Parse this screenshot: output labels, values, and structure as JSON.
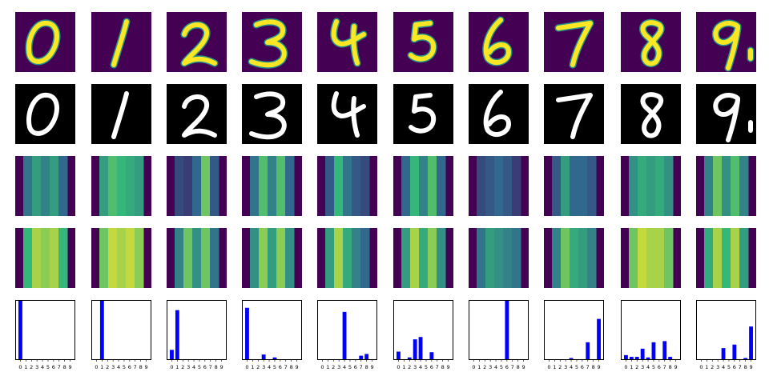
{
  "colors": {
    "viridis_dark": "#440154",
    "viridis_mid": "#21918c",
    "viridis_green": "#5ec962",
    "viridis_yellow": "#fde725",
    "digit_white": "#ffffff",
    "digit_black": "#000000",
    "bar_blue": "#0000ff"
  },
  "digits": [
    "0",
    "1",
    "2",
    "3",
    "4",
    "5",
    "6",
    "7",
    "8",
    "9"
  ],
  "rows": [
    {
      "name": "digit-viridis",
      "style": "viridis"
    },
    {
      "name": "digit-grayscale",
      "style": "grayscale"
    },
    {
      "name": "reconstruction-a",
      "style": "band"
    },
    {
      "name": "reconstruction-b",
      "style": "band"
    },
    {
      "name": "class-probability",
      "style": "bar"
    }
  ],
  "chart_data": [
    {
      "type": "bar",
      "panel": 1,
      "categories": [
        "0",
        "1",
        "2",
        "3",
        "4",
        "5",
        "6",
        "7",
        "8",
        "9"
      ],
      "values": [
        1.0,
        0,
        0,
        0,
        0,
        0,
        0,
        0,
        0,
        0
      ],
      "ylim": [
        0,
        1
      ],
      "grid": false
    },
    {
      "type": "bar",
      "panel": 2,
      "categories": [
        "0",
        "1",
        "2",
        "3",
        "4",
        "5",
        "6",
        "7",
        "8",
        "9"
      ],
      "values": [
        0,
        1.0,
        0,
        0,
        0,
        0,
        0,
        0,
        0,
        0
      ],
      "ylim": [
        0,
        1
      ],
      "grid": false
    },
    {
      "type": "bar",
      "panel": 3,
      "categories": [
        "0",
        "1",
        "2",
        "3",
        "4",
        "5",
        "6",
        "7",
        "8",
        "9"
      ],
      "values": [
        0.16,
        0.84,
        0,
        0,
        0,
        0,
        0,
        0,
        0,
        0
      ],
      "ylim": [
        0,
        1
      ],
      "grid": false
    },
    {
      "type": "bar",
      "panel": 4,
      "categories": [
        "0",
        "1",
        "2",
        "3",
        "4",
        "5",
        "6",
        "7",
        "8",
        "9"
      ],
      "values": [
        0.88,
        0,
        0,
        0.08,
        0,
        0.03,
        0,
        0,
        0,
        0
      ],
      "ylim": [
        0,
        1
      ],
      "grid": false
    },
    {
      "type": "bar",
      "panel": 5,
      "categories": [
        "0",
        "1",
        "2",
        "3",
        "4",
        "5",
        "6",
        "7",
        "8",
        "9"
      ],
      "values": [
        0,
        0,
        0,
        0,
        0.81,
        0,
        0,
        0.06,
        0.09,
        0
      ],
      "ylim": [
        0,
        1
      ],
      "grid": false
    },
    {
      "type": "bar",
      "panel": 6,
      "categories": [
        "0",
        "1",
        "2",
        "3",
        "4",
        "5",
        "6",
        "7",
        "8",
        "9"
      ],
      "values": [
        0.13,
        0,
        0.03,
        0.34,
        0.38,
        0,
        0.12,
        0,
        0,
        0
      ],
      "ylim": [
        0,
        1
      ],
      "grid": false
    },
    {
      "type": "bar",
      "panel": 7,
      "categories": [
        "0",
        "1",
        "2",
        "3",
        "4",
        "5",
        "6",
        "7",
        "8",
        "9"
      ],
      "values": [
        0,
        0,
        0,
        0,
        0,
        0,
        1.0,
        0,
        0,
        0
      ],
      "ylim": [
        0,
        1
      ],
      "grid": false
    },
    {
      "type": "bar",
      "panel": 8,
      "categories": [
        "0",
        "1",
        "2",
        "3",
        "4",
        "5",
        "6",
        "7",
        "8",
        "9"
      ],
      "values": [
        0,
        0,
        0,
        0,
        0.02,
        0,
        0,
        0.29,
        0,
        0.69
      ],
      "ylim": [
        0,
        1
      ],
      "grid": false
    },
    {
      "type": "bar",
      "panel": 9,
      "categories": [
        "0",
        "1",
        "2",
        "3",
        "4",
        "5",
        "6",
        "7",
        "8",
        "9"
      ],
      "values": [
        0.07,
        0.04,
        0.04,
        0.18,
        0.03,
        0.29,
        0,
        0.31,
        0.04,
        0
      ],
      "ylim": [
        0,
        1
      ],
      "grid": false
    },
    {
      "type": "bar",
      "panel": 10,
      "categories": [
        "0",
        "1",
        "2",
        "3",
        "4",
        "5",
        "6",
        "7",
        "8",
        "9"
      ],
      "values": [
        0,
        0,
        0,
        0,
        0.19,
        0,
        0.25,
        0,
        0.02,
        0.56
      ],
      "ylim": [
        0,
        1
      ],
      "grid": false
    }
  ]
}
